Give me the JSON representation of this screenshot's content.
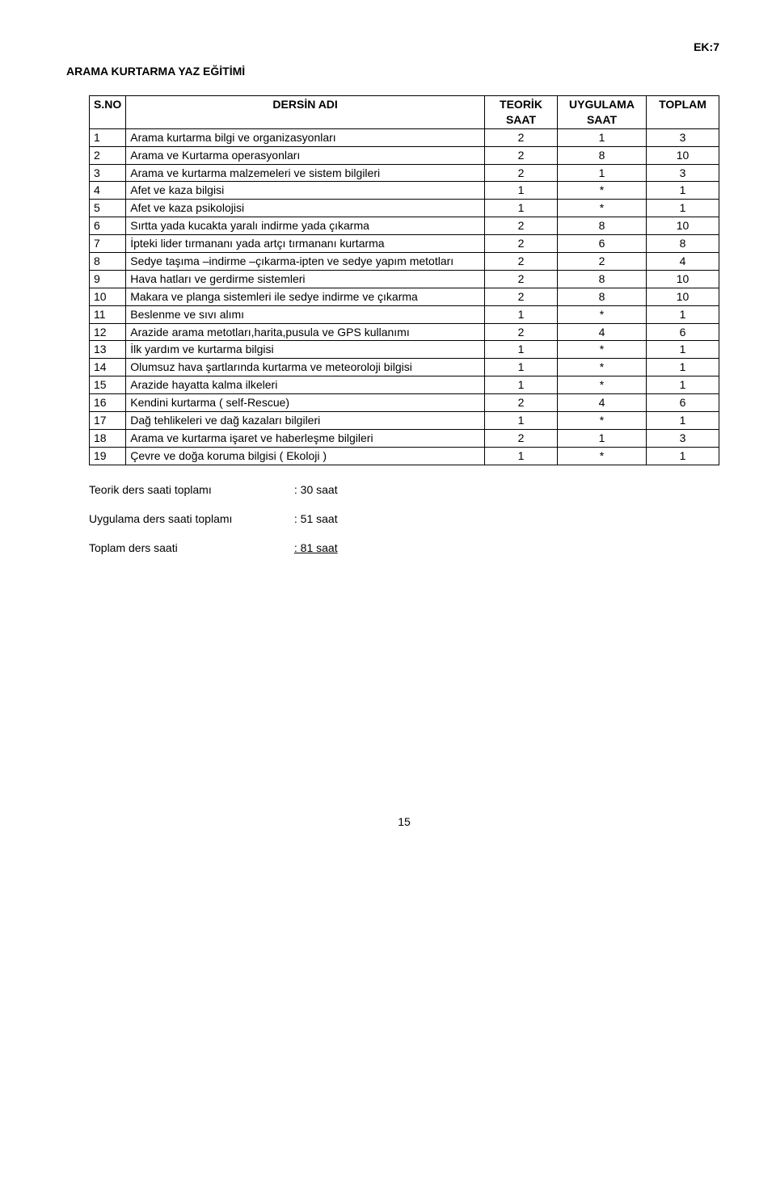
{
  "header": {
    "ek_label": "EK:7",
    "title": "ARAMA KURTARMA YAZ EĞİTİMİ"
  },
  "table": {
    "columns": {
      "sno": "S.NO",
      "name": "DERSİN ADI",
      "teorik": "TEORİK SAAT",
      "uygulama": "UYGULAMA SAAT",
      "toplam": "TOPLAM"
    },
    "rows": [
      {
        "sno": "1",
        "name": "Arama kurtarma bilgi ve organizasyonları",
        "t": "2",
        "u": "1",
        "tot": "3"
      },
      {
        "sno": "2",
        "name": "Arama ve Kurtarma operasyonları",
        "t": "2",
        "u": "8",
        "tot": "10"
      },
      {
        "sno": "3",
        "name": "Arama ve kurtarma malzemeleri ve sistem bilgileri",
        "t": "2",
        "u": "1",
        "tot": "3"
      },
      {
        "sno": "4",
        "name": "Afet ve kaza bilgisi",
        "t": "1",
        "u": "*",
        "tot": "1"
      },
      {
        "sno": "5",
        "name": "Afet ve kaza psikolojisi",
        "t": "1",
        "u": "*",
        "tot": "1"
      },
      {
        "sno": "6",
        "name": "Sırtta yada kucakta yaralı indirme yada çıkarma",
        "t": "2",
        "u": "8",
        "tot": "10"
      },
      {
        "sno": "7",
        "name": "İpteki lider tırmananı yada artçı tırmananı kurtarma",
        "t": "2",
        "u": "6",
        "tot": "8"
      },
      {
        "sno": "8",
        "name": "Sedye taşıma –indirme –çıkarma-ipten ve sedye yapım metotları",
        "t": "2",
        "u": "2",
        "tot": "4"
      },
      {
        "sno": "9",
        "name": "Hava hatları ve gerdirme sistemleri",
        "t": "2",
        "u": "8",
        "tot": "10"
      },
      {
        "sno": "10",
        "name": "Makara ve planga sistemleri ile sedye indirme ve çıkarma",
        "t": "2",
        "u": "8",
        "tot": "10"
      },
      {
        "sno": "11",
        "name": "Beslenme ve sıvı alımı",
        "t": "1",
        "u": "*",
        "tot": "1"
      },
      {
        "sno": "12",
        "name": "Arazide arama metotları,harita,pusula ve GPS kullanımı",
        "t": "2",
        "u": "4",
        "tot": "6"
      },
      {
        "sno": "13",
        "name": "İlk yardım ve kurtarma bilgisi",
        "t": "1",
        "u": "*",
        "tot": "1"
      },
      {
        "sno": "14",
        "name": "Olumsuz hava şartlarında kurtarma ve meteoroloji bilgisi",
        "t": "1",
        "u": "*",
        "tot": "1"
      },
      {
        "sno": "15",
        "name": "Arazide hayatta kalma ilkeleri",
        "t": "1",
        "u": "*",
        "tot": "1"
      },
      {
        "sno": "16",
        "name": "Kendini kurtarma ( self-Rescue)",
        "t": "2",
        "u": "4",
        "tot": "6"
      },
      {
        "sno": "17",
        "name": "Dağ tehlikeleri ve dağ kazaları bilgileri",
        "t": "1",
        "u": "*",
        "tot": "1"
      },
      {
        "sno": "18",
        "name": "Arama ve kurtarma işaret ve haberleşme bilgileri",
        "t": "2",
        "u": "1",
        "tot": "3"
      },
      {
        "sno": "19",
        "name": "Çevre ve doğa koruma bilgisi ( Ekoloji )",
        "t": "1",
        "u": "*",
        "tot": "1"
      }
    ]
  },
  "summary": {
    "teorik_label": "Teorik ders saati toplamı",
    "teorik_val": ": 30 saat",
    "uygulama_label": "Uygulama ders saati toplamı",
    "uygulama_val": ": 51 saat",
    "toplam_label": "Toplam ders saati",
    "toplam_val": ": 81 saat"
  },
  "page_number": "15"
}
